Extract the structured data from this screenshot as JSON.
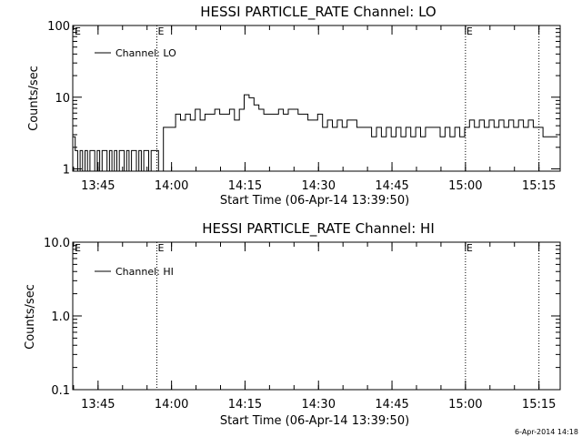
{
  "chart_data": [
    {
      "type": "line",
      "title": "HESSI PARTICLE_RATE Channel: LO",
      "xlabel": "Start Time (06-Apr-14 13:39:50)",
      "ylabel": "Counts/sec",
      "yscale": "log",
      "ylim": [
        0.93,
        100
      ],
      "xlim_minutes": [
        0,
        99.5
      ],
      "x_ticks": [
        "13:45",
        "14:00",
        "14:15",
        "14:30",
        "14:45",
        "15:00",
        "15:15"
      ],
      "y_ticks": [
        "1",
        "10",
        "100"
      ],
      "legend": "Channel: LO",
      "legend_position": "top-left",
      "event_markers": [
        {
          "label": "E",
          "time": "13:57"
        },
        {
          "label": "E",
          "time": "15:00"
        },
        {
          "label": "",
          "time": "15:15"
        }
      ],
      "series": [
        {
          "name": "Channel: LO",
          "x_minutes": [
            0,
            0.5,
            1,
            1.5,
            2,
            2.5,
            3,
            3.5,
            4,
            4.5,
            5,
            5.5,
            6,
            6.5,
            7,
            7.5,
            8,
            8.5,
            9,
            9.5,
            10,
            10.5,
            11,
            11.5,
            12,
            12.5,
            13,
            13.5,
            14,
            14.5,
            15,
            15.5,
            16,
            16.5,
            17,
            17.5,
            18,
            18.5,
            19,
            20,
            21,
            22,
            23,
            24,
            25,
            26,
            27,
            28,
            29,
            30,
            31,
            32,
            33,
            34,
            35,
            36,
            37,
            38,
            39,
            40,
            41,
            42,
            43,
            44,
            45,
            46,
            47,
            48,
            49,
            50,
            51,
            52,
            53,
            54,
            55,
            56,
            57,
            58,
            59,
            60,
            61,
            62,
            63,
            64,
            65,
            66,
            67,
            68,
            69,
            70,
            71,
            72,
            73,
            74,
            75,
            76,
            77,
            78,
            79,
            80,
            81,
            82,
            83,
            84,
            85,
            86,
            87,
            88,
            89,
            90,
            91,
            92,
            93,
            94,
            95,
            96,
            96.5,
            97,
            98,
            99
          ],
          "values": [
            2.8,
            1.8,
            0.93,
            1.8,
            0.93,
            1.8,
            0.93,
            1.8,
            1.8,
            0.93,
            1.8,
            0.93,
            1.8,
            1.8,
            0.93,
            1.8,
            0.93,
            1.8,
            0.93,
            1.8,
            1.8,
            0.93,
            1.8,
            0.93,
            1.8,
            1.8,
            0.93,
            1.8,
            0.93,
            1.8,
            1.8,
            0.93,
            1.8,
            1.8,
            1.8,
            0.93,
            0.93,
            3.8,
            3.8,
            3.8,
            5.8,
            4.8,
            5.8,
            4.8,
            6.8,
            4.8,
            5.8,
            5.8,
            6.8,
            5.8,
            5.8,
            6.8,
            4.8,
            6.8,
            10.8,
            9.8,
            7.8,
            6.8,
            5.8,
            5.8,
            5.8,
            6.8,
            5.8,
            6.8,
            6.8,
            5.8,
            5.8,
            4.8,
            4.8,
            5.8,
            3.8,
            4.8,
            3.8,
            4.8,
            3.8,
            4.8,
            4.8,
            3.8,
            3.8,
            3.8,
            2.8,
            3.8,
            2.8,
            3.8,
            2.8,
            3.8,
            2.8,
            3.8,
            2.8,
            3.8,
            2.8,
            3.8,
            3.8,
            3.8,
            2.8,
            3.8,
            2.8,
            3.8,
            2.8,
            3.8,
            4.8,
            3.8,
            4.8,
            3.8,
            4.8,
            3.8,
            4.8,
            3.8,
            4.8,
            3.8,
            4.8,
            3.8,
            4.8,
            3.8,
            3.8,
            2.8,
            2.8,
            2.8,
            2.8,
            2.8
          ]
        }
      ]
    },
    {
      "type": "line",
      "title": "HESSI PARTICLE_RATE Channel: HI",
      "xlabel": "Start Time (06-Apr-14 13:39:50)",
      "ylabel": "Counts/sec",
      "yscale": "log",
      "ylim": [
        0.1,
        10
      ],
      "xlim_minutes": [
        0,
        99.5
      ],
      "x_ticks": [
        "13:45",
        "14:00",
        "14:15",
        "14:30",
        "14:45",
        "15:00",
        "15:15"
      ],
      "y_ticks": [
        "0.1",
        "1.0",
        "10.0"
      ],
      "legend": "Channel: HI",
      "legend_position": "top-left",
      "event_markers": [
        {
          "label": "E",
          "time": "13:57"
        },
        {
          "label": "E",
          "time": "15:00"
        },
        {
          "label": "",
          "time": "15:15"
        }
      ],
      "series": [
        {
          "name": "Channel: HI",
          "x_minutes": [],
          "values": []
        }
      ]
    }
  ],
  "footer_stamp": "6-Apr-2014 14:18"
}
